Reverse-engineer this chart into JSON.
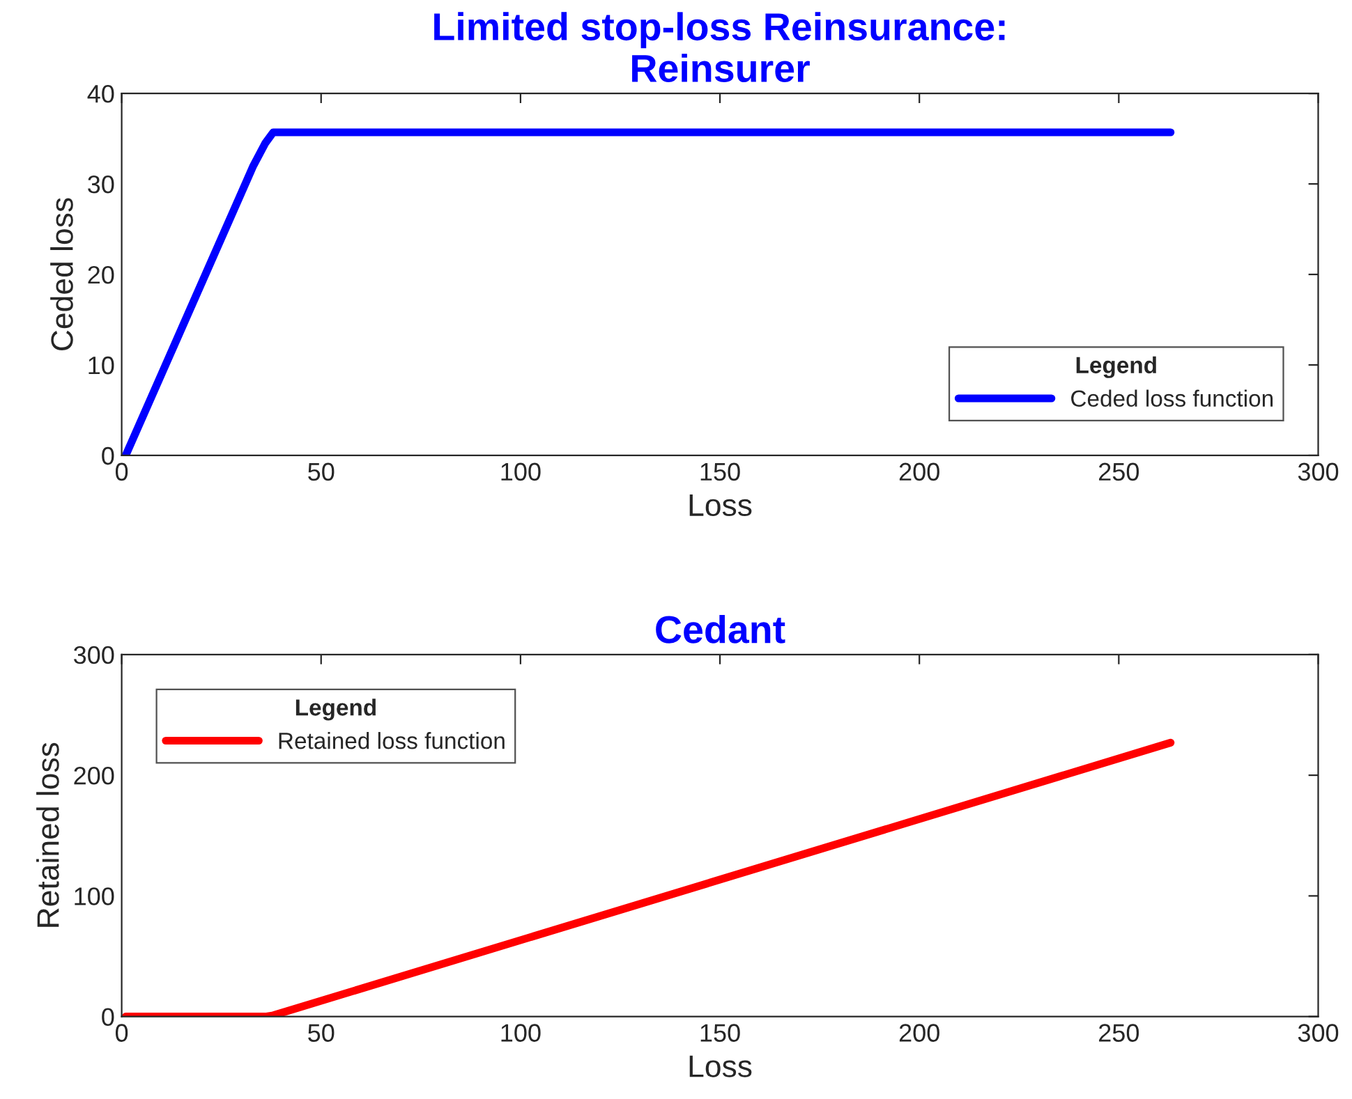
{
  "chart_data": [
    {
      "type": "line",
      "title": "Limited stop-loss Reinsurance:\nReinsurer",
      "xlabel": "Loss",
      "ylabel": "Ceded loss",
      "legend_title": "Legend",
      "legend": "lower right",
      "series": [
        {
          "name": "Ceded loss function",
          "color": "#0000ff",
          "x": [
            1,
            33,
            36,
            38,
            263
          ],
          "values": [
            0,
            32,
            34.5,
            35.7,
            35.7
          ]
        }
      ],
      "xlim": [
        0,
        300
      ],
      "ylim": [
        0,
        40
      ],
      "xticks": [
        0,
        50,
        100,
        150,
        200,
        250,
        300
      ],
      "yticks": [
        0,
        10,
        20,
        30,
        40
      ],
      "grid": false,
      "marker": "none",
      "line_style": "solid"
    },
    {
      "type": "line",
      "title": "Cedant",
      "xlabel": "Loss",
      "ylabel": "Retained loss",
      "legend_title": "Legend",
      "legend": "upper left",
      "series": [
        {
          "name": "Retained loss function",
          "color": "#ff0000",
          "x": [
            1,
            36,
            38,
            263
          ],
          "values": [
            0,
            0,
            1,
            227
          ]
        }
      ],
      "xlim": [
        0,
        300
      ],
      "ylim": [
        0,
        300
      ],
      "xticks": [
        0,
        50,
        100,
        150,
        200,
        250,
        300
      ],
      "yticks": [
        0,
        100,
        200,
        300
      ],
      "grid": false,
      "marker": "none",
      "line_style": "solid"
    }
  ]
}
